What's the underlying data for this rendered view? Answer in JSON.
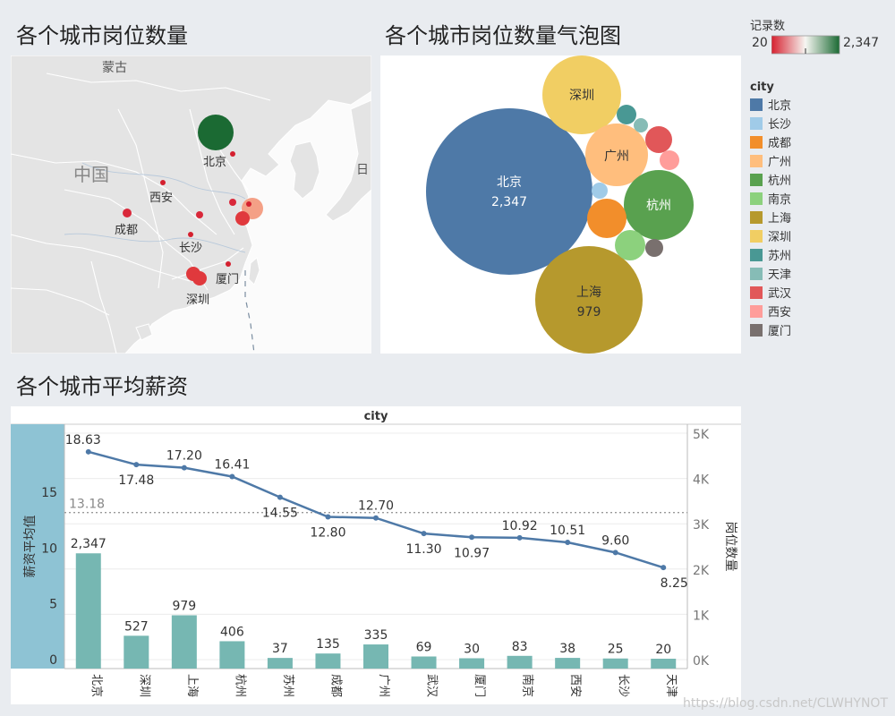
{
  "titles": {
    "map": "各个城市岗位数量",
    "bubble": "各个城市岗位数量气泡图",
    "salary": "各个城市平均薪资"
  },
  "legend": {
    "count_title": "记录数",
    "count_min": "20",
    "count_max": "2,347",
    "count_colors": {
      "low": "#d6202f",
      "mid": "#f6f6f2",
      "high": "#1b6a33"
    },
    "city_title": "city",
    "items": [
      {
        "name": "北京",
        "color": "#4e79a7"
      },
      {
        "name": "长沙",
        "color": "#a0cbe8"
      },
      {
        "name": "成都",
        "color": "#f28e2b"
      },
      {
        "name": "广州",
        "color": "#ffbe7d"
      },
      {
        "name": "杭州",
        "color": "#59a14f"
      },
      {
        "name": "南京",
        "color": "#8cd17d"
      },
      {
        "name": "上海",
        "color": "#b6992d"
      },
      {
        "name": "深圳",
        "color": "#f1ce63"
      },
      {
        "name": "苏州",
        "color": "#499894"
      },
      {
        "name": "天津",
        "color": "#86bcb6"
      },
      {
        "name": "武汉",
        "color": "#e15759"
      },
      {
        "name": "西安",
        "color": "#ff9d9a"
      },
      {
        "name": "厦门",
        "color": "#79706e"
      }
    ]
  },
  "map": {
    "labels": {
      "mongolia": "蒙古",
      "china": "中国",
      "japan_partial": "日",
      "beijing": "北京",
      "xian": "西安",
      "chengdu": "成都",
      "changsha": "长沙",
      "xiamen": "厦门",
      "shenzhen": "深圳"
    },
    "land_color": "#e4e4e4",
    "sea_color": "#fbfbfb",
    "border_color": "#ffffff"
  },
  "bubble": {
    "labels": {
      "beijing_name": "北京",
      "beijing_value": "2,347",
      "shanghai_name": "上海",
      "shanghai_value": "979",
      "shenzhen_name": "深圳",
      "guangzhou_name": "广州",
      "hangzhou_name": "杭州"
    }
  },
  "salary_chart": {
    "header": "city",
    "left_axis_title": "薪资平均值",
    "right_axis_title": "岗位数量",
    "left_ticks": [
      "0",
      "5",
      "10",
      "15"
    ],
    "right_ticks": [
      "0K",
      "1K",
      "2K",
      "3K",
      "4K",
      "5K"
    ],
    "avg_line_label": "13.18",
    "watermark": "https://blog.csdn.net/CLWHYNOT"
  },
  "chart_data": {
    "type": "bar",
    "title": "各个城市平均薪资",
    "xlabel": "city",
    "ylabel": "薪资平均值",
    "y2label": "岗位数量",
    "categories": [
      "北京",
      "深圳",
      "上海",
      "杭州",
      "苏州",
      "成都",
      "广州",
      "武汉",
      "厦门",
      "南京",
      "西安",
      "长沙",
      "天津"
    ],
    "series": [
      {
        "name": "岗位数量",
        "type": "bar",
        "axis": "right",
        "values": [
          2347,
          527,
          979,
          406,
          37,
          135,
          335,
          69,
          30,
          83,
          38,
          25,
          20
        ],
        "labels": [
          "2,347",
          "527",
          "979",
          "406",
          "37",
          "135",
          "335",
          "69",
          "30",
          "83",
          "38",
          "25",
          "20"
        ]
      },
      {
        "name": "薪资平均值",
        "type": "line",
        "axis": "left",
        "values": [
          18.63,
          17.48,
          17.2,
          16.41,
          14.55,
          12.8,
          12.7,
          11.3,
          10.97,
          10.92,
          10.51,
          9.6,
          8.25
        ],
        "labels": [
          "18.63",
          "17.48",
          "17.20",
          "16.41",
          "14.55",
          "12.80",
          "12.70",
          "11.30",
          "10.97",
          "10.92",
          "10.51",
          "9.60",
          "8.25"
        ]
      }
    ],
    "reference_line": {
      "value": 13.18,
      "label": "13.18"
    },
    "ylim": [
      0,
      20.3
    ],
    "y2lim": [
      0,
      5000
    ],
    "grid": true,
    "bar_color": "#76b7b2",
    "line_color": "#4e79a7"
  },
  "bubble_data": {
    "type": "bubble",
    "cities": [
      {
        "name": "北京",
        "value": 2347
      },
      {
        "name": "上海",
        "value": 979
      },
      {
        "name": "深圳",
        "value": 527
      },
      {
        "name": "杭州",
        "value": 406
      },
      {
        "name": "广州",
        "value": 335
      },
      {
        "name": "成都",
        "value": 135
      },
      {
        "name": "南京",
        "value": 83
      },
      {
        "name": "武汉",
        "value": 69
      },
      {
        "name": "西安",
        "value": 38
      },
      {
        "name": "苏州",
        "value": 37
      },
      {
        "name": "厦门",
        "value": 30
      },
      {
        "name": "长沙",
        "value": 25
      },
      {
        "name": "天津",
        "value": 20
      }
    ]
  },
  "map_data": {
    "cities": [
      {
        "name": "北京",
        "value": 2347
      },
      {
        "name": "上海",
        "value": 979
      },
      {
        "name": "深圳",
        "value": 527
      },
      {
        "name": "杭州",
        "value": 406
      },
      {
        "name": "广州",
        "value": 335
      },
      {
        "name": "成都",
        "value": 135
      },
      {
        "name": "南京",
        "value": 83
      },
      {
        "name": "武汉",
        "value": 69
      },
      {
        "name": "西安",
        "value": 38
      },
      {
        "name": "苏州",
        "value": 37
      },
      {
        "name": "厦门",
        "value": 30
      },
      {
        "name": "长沙",
        "value": 25
      },
      {
        "name": "天津",
        "value": 20
      }
    ]
  }
}
